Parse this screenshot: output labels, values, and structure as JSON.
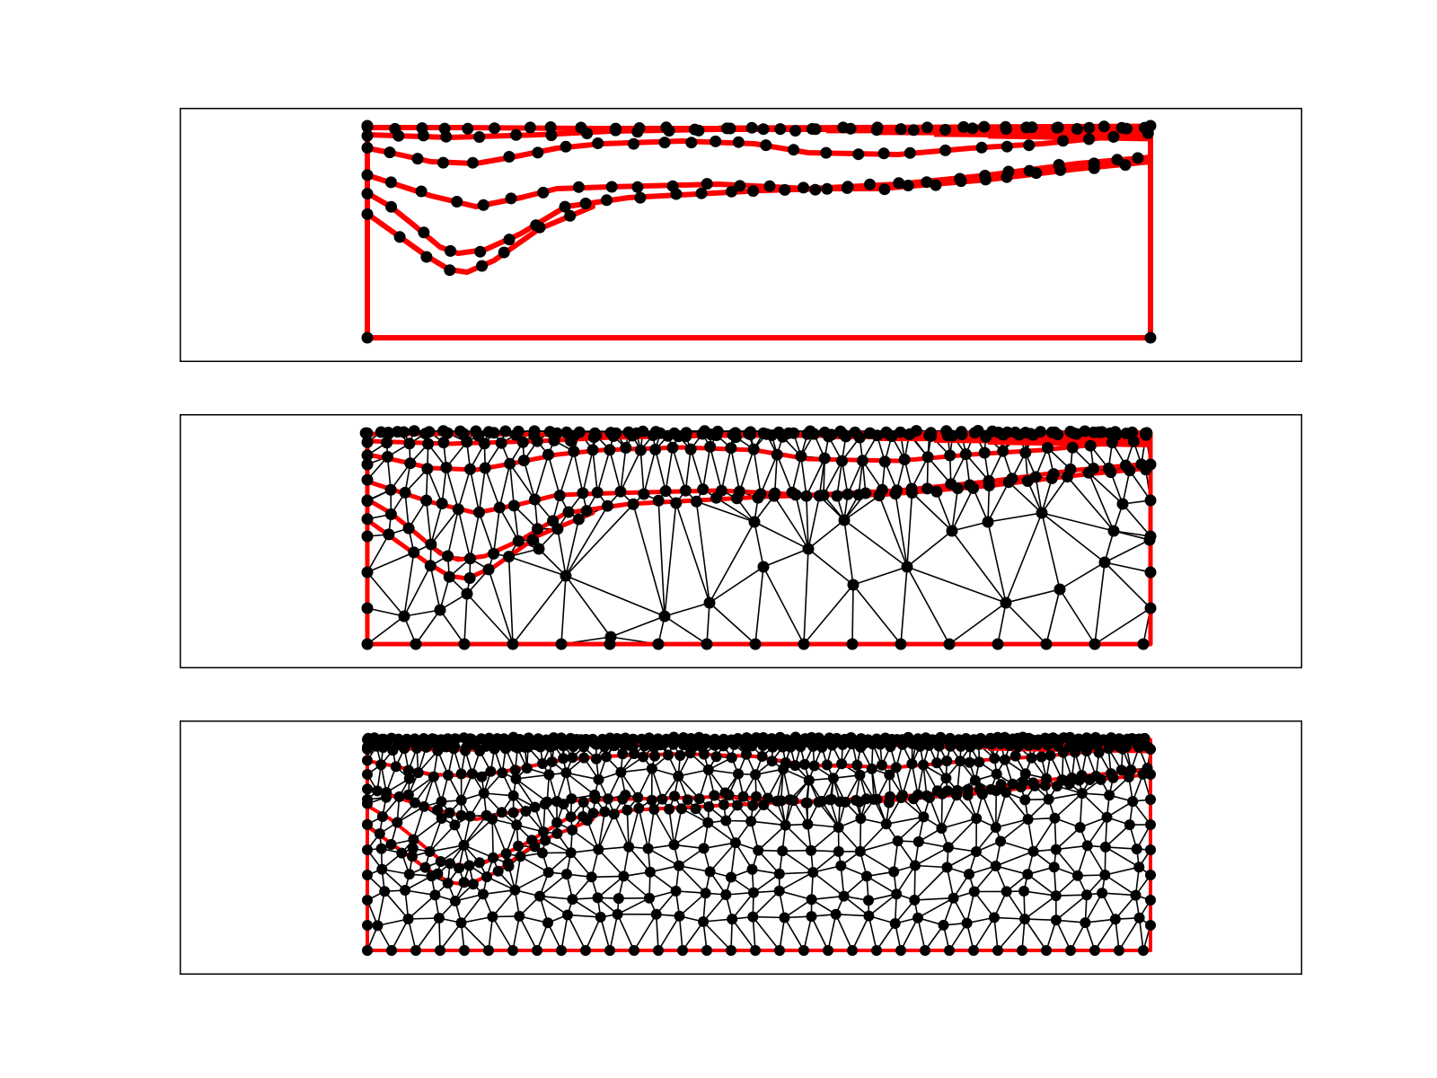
{
  "figure": {
    "panels": [
      {
        "id": "boundary-curves",
        "content": "curves-with-nodes"
      },
      {
        "id": "coarse-triangulation",
        "content": "curves-with-coarse-mesh"
      },
      {
        "id": "fine-triangulation",
        "content": "curves-with-fine-mesh"
      }
    ],
    "colors": {
      "boundary": "#ff0000",
      "node": "#000000",
      "mesh_edge": "#000000",
      "frame": "#000000",
      "background": "#ffffff"
    },
    "axes": {
      "ticks": "none",
      "tick_labels": "none",
      "grid": false,
      "legend": false
    }
  }
}
